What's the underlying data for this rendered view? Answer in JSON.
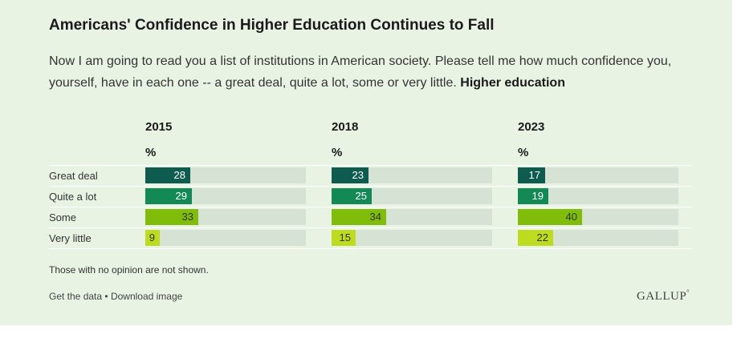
{
  "header": {
    "title": "Americans' Confidence in Higher Education Continues to Fall",
    "subtitle_text": "Now I am going to read you a list of institutions in American society. Please tell me how much confidence you, yourself, have in each one -- a great deal, quite a lot, some or very little.",
    "subtitle_bold": "Higher education"
  },
  "chart_data": {
    "type": "bar",
    "categories": [
      "Great deal",
      "Quite a lot",
      "Some",
      "Very little"
    ],
    "unit": "%",
    "xlim": [
      0,
      100
    ],
    "series": [
      {
        "name": "2015",
        "values": [
          28,
          29,
          33,
          9
        ]
      },
      {
        "name": "2018",
        "values": [
          23,
          25,
          34,
          15
        ]
      },
      {
        "name": "2023",
        "values": [
          17,
          19,
          40,
          22
        ]
      }
    ],
    "colors": [
      "#0e5c4f",
      "#138a55",
      "#7fbd0a",
      "#bddb1f"
    ],
    "value_label_colors": [
      "#ffffff",
      "#ffffff",
      "#333333",
      "#333333"
    ]
  },
  "footer": {
    "note": "Those with no opinion are not shown.",
    "get_data": "Get the data",
    "separator": "•",
    "download": "Download image",
    "logo": "GALLUP",
    "logo_mark": "°"
  }
}
